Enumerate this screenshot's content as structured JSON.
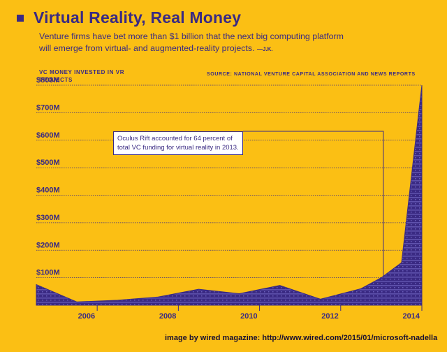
{
  "header": {
    "title": "Virtual Reality, Real Money",
    "subtitle": "Venture firms have bet more than $1 billion that the next big computing platform will emerge from virtual- and augmented-reality projects.",
    "byline": "—J.K."
  },
  "source_note": "SOURCE: NATIONAL VENTURE CAPITAL ASSOCIATION AND NEWS REPORTS",
  "footer": "image by wired magazine:    http://www.wired.com/2015/01/microsoft-nadella",
  "colors": {
    "background": "#fbbf14",
    "area": "#3a2a83",
    "text": "#3a2a83"
  },
  "chart_data": {
    "type": "area",
    "title": "Virtual Reality, Real Money",
    "ylabel": "VC MONEY INVESTED IN VR PROJECTS",
    "xlabel": "",
    "x": [
      2004.5,
      2005.5,
      2006.5,
      2007.5,
      2008.5,
      2009.5,
      2010.5,
      2011.5,
      2012.5,
      2013.0,
      2013.5,
      2014.0
    ],
    "values": [
      75,
      12,
      18,
      30,
      58,
      42,
      72,
      22,
      60,
      100,
      155,
      800
    ],
    "xlim": [
      2004.5,
      2014.0
    ],
    "ylim": [
      0,
      800
    ],
    "y_ticks": [
      100,
      200,
      300,
      400,
      500,
      600,
      700,
      800
    ],
    "y_tick_labels": [
      "$100M",
      "$200M",
      "$300M",
      "$400M",
      "$500M",
      "$600M",
      "$700M",
      "$800M"
    ],
    "x_ticks": [
      2006,
      2008,
      2010,
      2012,
      2014
    ],
    "x_tick_labels": [
      "2006",
      "2008",
      "2010",
      "2012",
      "2014"
    ],
    "grid": true,
    "annotation": {
      "text": "Oculus Rift accounted for 64 percent of total VC funding for virtual reality in 2013.",
      "x": 2013.0
    }
  }
}
